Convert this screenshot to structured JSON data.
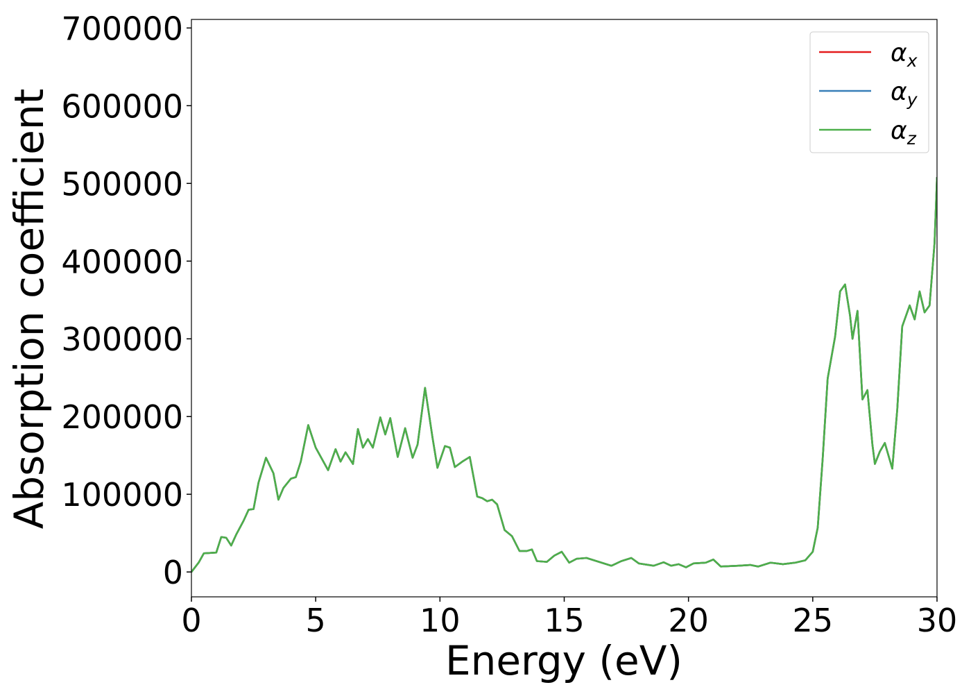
{
  "chart_data": {
    "type": "line",
    "x_label": "Energy (eV)",
    "y_label": "Absorption coefficient",
    "x": [
      0,
      0.3,
      0.5,
      1.0,
      1.2,
      1.4,
      1.6,
      1.8,
      2.1,
      2.3,
      2.5,
      2.7,
      3.0,
      3.3,
      3.5,
      3.7,
      4.0,
      4.2,
      4.4,
      4.7,
      5.0,
      5.5,
      5.8,
      6.0,
      6.2,
      6.5,
      6.7,
      6.9,
      7.1,
      7.3,
      7.6,
      7.8,
      8.0,
      8.3,
      8.6,
      8.9,
      9.1,
      9.4,
      9.7,
      9.9,
      10.2,
      10.4,
      10.6,
      10.9,
      11.2,
      11.5,
      11.7,
      11.9,
      12.1,
      12.3,
      12.6,
      12.9,
      13.2,
      13.5,
      13.7,
      13.9,
      14.3,
      14.6,
      14.9,
      15.2,
      15.5,
      15.9,
      16.3,
      16.9,
      17.3,
      17.7,
      18.0,
      18.6,
      19.0,
      19.3,
      19.6,
      19.9,
      20.2,
      20.7,
      21.0,
      21.3,
      22.0,
      22.5,
      22.8,
      23.3,
      23.8,
      24.3,
      24.7,
      25.0,
      25.2,
      25.4,
      25.6,
      25.9,
      26.1,
      26.3,
      26.5,
      26.6,
      26.8,
      27.0,
      27.2,
      27.4,
      27.5,
      27.7,
      27.9,
      28.2,
      28.4,
      28.6,
      28.9,
      29.1,
      29.3,
      29.5,
      29.7,
      29.9,
      30.0
    ],
    "series": [
      {
        "name": "αx",
        "color": "#e41a1c",
        "values": [
          0,
          12500,
          24000,
          25000,
          45000,
          44000,
          34000,
          48000,
          66000,
          80000,
          81000,
          115000,
          147000,
          127000,
          93000,
          108000,
          120000,
          122000,
          142000,
          189000,
          160000,
          131000,
          158000,
          142000,
          154000,
          139000,
          184000,
          160000,
          171000,
          160000,
          199000,
          177000,
          198000,
          148000,
          185000,
          147000,
          164000,
          237000,
          173000,
          134000,
          162000,
          160000,
          135000,
          142000,
          148000,
          97000,
          95000,
          91000,
          93000,
          87000,
          54000,
          46000,
          27000,
          27000,
          29000,
          14000,
          13000,
          21000,
          26000,
          12000,
          17000,
          18000,
          14000,
          8000,
          14000,
          18000,
          11000,
          8000,
          12500,
          8000,
          10000,
          6000,
          11000,
          12000,
          16000,
          7000,
          8000,
          9000,
          7000,
          12000,
          10000,
          12000,
          15000,
          26000,
          57000,
          146000,
          249000,
          303000,
          361000,
          370000,
          330000,
          300000,
          336000,
          222000,
          234000,
          164000,
          139000,
          155000,
          166000,
          133000,
          209000,
          316000,
          343000,
          325000,
          361000,
          334000,
          343000,
          423000,
          508000
        ]
      },
      {
        "name": "αy",
        "color": "#377eb8",
        "values": [
          0,
          12500,
          24000,
          25000,
          45000,
          44000,
          34000,
          48000,
          66000,
          80000,
          81000,
          115000,
          147000,
          127000,
          93000,
          108000,
          120000,
          122000,
          142000,
          189000,
          160000,
          131000,
          158000,
          142000,
          154000,
          139000,
          184000,
          160000,
          171000,
          160000,
          199000,
          177000,
          198000,
          148000,
          185000,
          147000,
          164000,
          237000,
          173000,
          134000,
          162000,
          160000,
          135000,
          142000,
          148000,
          97000,
          95000,
          91000,
          93000,
          87000,
          54000,
          46000,
          27000,
          27000,
          29000,
          14000,
          13000,
          21000,
          26000,
          12000,
          17000,
          18000,
          14000,
          8000,
          14000,
          18000,
          11000,
          8000,
          12500,
          8000,
          10000,
          6000,
          11000,
          12000,
          16000,
          7000,
          8000,
          9000,
          7000,
          12000,
          10000,
          12000,
          15000,
          26000,
          57000,
          146000,
          249000,
          303000,
          361000,
          370000,
          330000,
          300000,
          336000,
          222000,
          234000,
          164000,
          139000,
          155000,
          166000,
          133000,
          209000,
          316000,
          343000,
          325000,
          361000,
          334000,
          343000,
          423000,
          508000
        ]
      },
      {
        "name": "αz",
        "color": "#4daf4a",
        "values": [
          0,
          12500,
          24000,
          25000,
          45000,
          44000,
          34000,
          48000,
          66000,
          80000,
          81000,
          115000,
          147000,
          127000,
          93000,
          108000,
          120000,
          122000,
          142000,
          189000,
          160000,
          131000,
          158000,
          142000,
          154000,
          139000,
          184000,
          160000,
          171000,
          160000,
          199000,
          177000,
          198000,
          148000,
          185000,
          147000,
          164000,
          237000,
          173000,
          134000,
          162000,
          160000,
          135000,
          142000,
          148000,
          97000,
          95000,
          91000,
          93000,
          87000,
          54000,
          46000,
          27000,
          27000,
          29000,
          14000,
          13000,
          21000,
          26000,
          12000,
          17000,
          18000,
          14000,
          8000,
          14000,
          18000,
          11000,
          8000,
          12500,
          8000,
          10000,
          6000,
          11000,
          12000,
          16000,
          7000,
          8000,
          9000,
          7000,
          12000,
          10000,
          12000,
          15000,
          26000,
          57000,
          146000,
          249000,
          303000,
          361000,
          370000,
          330000,
          300000,
          336000,
          222000,
          234000,
          164000,
          139000,
          155000,
          166000,
          133000,
          209000,
          316000,
          343000,
          325000,
          361000,
          334000,
          343000,
          423000,
          508000
        ]
      }
    ],
    "xlim": [
      0,
      30
    ],
    "xticks": [
      0,
      5,
      10,
      15,
      20,
      25,
      30
    ],
    "ylim": [
      -32000,
      711000
    ],
    "yticks": [
      0,
      100000,
      200000,
      300000,
      400000,
      500000,
      600000,
      700000
    ],
    "grid": false,
    "legend": "upper right"
  }
}
